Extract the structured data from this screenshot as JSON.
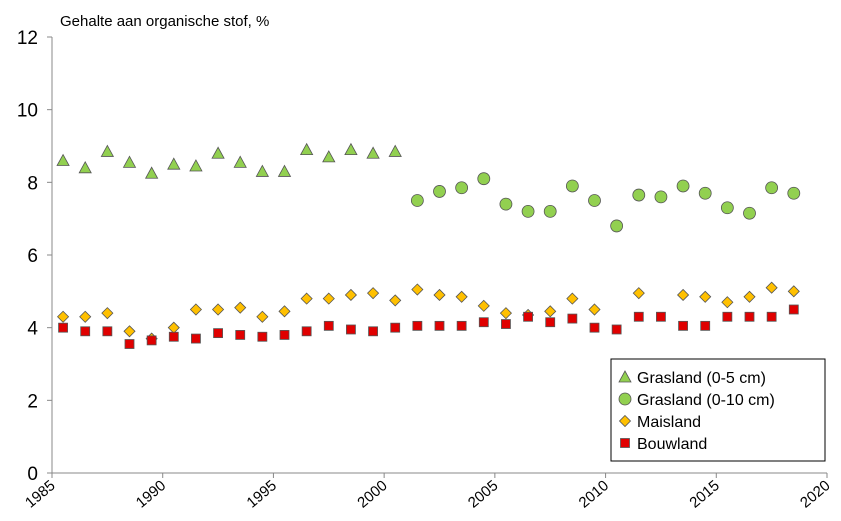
{
  "chart_data": {
    "type": "scatter",
    "title": "Gehalte aan organische stof, %",
    "xlim": [
      1985,
      2020
    ],
    "xticks": [
      1985,
      1990,
      1995,
      2000,
      2005,
      2010,
      2015,
      2020
    ],
    "ylim": [
      0,
      12
    ],
    "yticks": [
      0,
      2,
      4,
      6,
      8,
      10,
      12
    ],
    "legend": "lower right",
    "series": [
      {
        "name": "Grasland (0-5 cm)",
        "color": "#92d050",
        "marker": "triangle",
        "x": [
          1985.5,
          1986.5,
          1987.5,
          1988.5,
          1989.5,
          1990.5,
          1991.5,
          1992.5,
          1993.5,
          1994.5,
          1995.5,
          1996.5,
          1997.5,
          1998.5,
          1999.5,
          2000.5
        ],
        "values": [
          8.6,
          8.4,
          8.85,
          8.55,
          8.25,
          8.5,
          8.45,
          8.8,
          8.55,
          8.3,
          8.3,
          8.9,
          8.7,
          8.9,
          8.8,
          8.85
        ]
      },
      {
        "name": "Grasland (0-10 cm)",
        "color": "#92d050",
        "marker": "circle",
        "x": [
          2001.5,
          2002.5,
          2003.5,
          2004.5,
          2005.5,
          2006.5,
          2007.5,
          2008.5,
          2009.5,
          2010.5,
          2011.5,
          2012.5,
          2013.5,
          2014.5,
          2015.5,
          2016.5,
          2017.5,
          2018.5
        ],
        "values": [
          7.5,
          7.75,
          7.85,
          8.1,
          7.4,
          7.2,
          7.2,
          7.9,
          7.5,
          6.8,
          7.65,
          7.6,
          7.9,
          7.7,
          7.3,
          7.15,
          7.85,
          7.7
        ]
      },
      {
        "name": "Maisland",
        "color": "#ffc000",
        "marker": "diamond",
        "x": [
          1985.5,
          1986.5,
          1987.5,
          1988.5,
          1989.5,
          1990.5,
          1991.5,
          1992.5,
          1993.5,
          1994.5,
          1995.5,
          1996.5,
          1997.5,
          1998.5,
          1999.5,
          2000.5,
          2001.5,
          2002.5,
          2003.5,
          2004.5,
          2005.5,
          2006.5,
          2007.5,
          2008.5,
          2009.5,
          2010.5,
          2011.5,
          2012.5,
          2013.5,
          2014.5,
          2015.5,
          2016.5,
          2017.5,
          2018.5
        ],
        "values": [
          4.3,
          4.3,
          4.4,
          3.9,
          3.7,
          4.0,
          4.5,
          4.5,
          4.55,
          4.3,
          4.45,
          4.8,
          4.8,
          4.9,
          4.95,
          4.75,
          5.05,
          4.9,
          4.85,
          4.6,
          4.4,
          4.35,
          4.45,
          4.8,
          4.5,
          null,
          4.95,
          null,
          4.9,
          4.85,
          4.7,
          4.85,
          5.1,
          5.0
        ]
      },
      {
        "name": "Bouwland",
        "color": "#e00000",
        "marker": "square",
        "x": [
          1985.5,
          1986.5,
          1987.5,
          1988.5,
          1989.5,
          1990.5,
          1991.5,
          1992.5,
          1993.5,
          1994.5,
          1995.5,
          1996.5,
          1997.5,
          1998.5,
          1999.5,
          2000.5,
          2001.5,
          2002.5,
          2003.5,
          2004.5,
          2005.5,
          2006.5,
          2007.5,
          2008.5,
          2009.5,
          2010.5,
          2011.5,
          2012.5,
          2013.5,
          2014.5,
          2015.5,
          2016.5,
          2017.5,
          2018.5
        ],
        "values": [
          4.0,
          3.9,
          3.9,
          3.55,
          3.65,
          3.75,
          3.7,
          3.85,
          3.8,
          3.75,
          3.8,
          3.9,
          4.05,
          3.95,
          3.9,
          4.0,
          4.05,
          4.05,
          4.05,
          4.15,
          4.1,
          4.3,
          4.15,
          4.25,
          4.0,
          3.95,
          4.3,
          4.3,
          4.05,
          4.05,
          4.3,
          4.3,
          4.3,
          4.5
        ]
      }
    ]
  }
}
